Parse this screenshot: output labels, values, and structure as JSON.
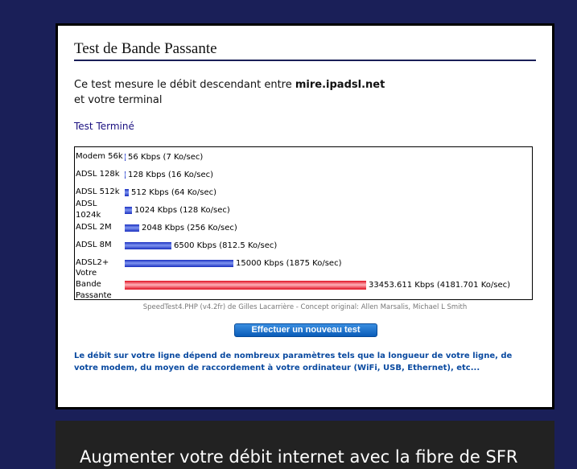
{
  "panel": {
    "title": "Test de Bande Passante",
    "intro_prefix": "Ce test mesure le débit descendant entre ",
    "intro_host": "mire.ipadsl.net",
    "intro_suffix": "et votre terminal",
    "status": "Test Terminé",
    "credit": "SpeedTest4.PHP (v4.2fr) de Gilles Lacarrière - Concept original: Allen Marsalis, Michael L Smith",
    "button_label": "Effectuer un nouveau test",
    "note": "Le débit sur votre ligne dépend de nombreux paramètres tels que la longueur de votre ligne, de votre modem, du moyen de raccordement à votre ordinateur (WiFi, USB, Ethernet), etc..."
  },
  "chart_data": {
    "type": "bar",
    "orientation": "horizontal",
    "unit": "Kbps",
    "categories": [
      "Modem 56k",
      "ADSL 128k",
      "ADSL 512k",
      "ADSL 1024k",
      "ADSL 2M",
      "ADSL 8M",
      "ADSL2+",
      "Votre Bande Passante"
    ],
    "values": [
      56,
      128,
      512,
      1024,
      2048,
      6500,
      15000,
      33453.611
    ],
    "labels": [
      "56 Kbps (7 Ko/sec)",
      "128 Kbps (16 Ko/sec)",
      "512 Kbps (64 Ko/sec)",
      "1024 Kbps (128 Ko/sec)",
      "2048 Kbps (256 Ko/sec)",
      "6500 Kbps (812.5 Ko/sec)",
      "15000 Kbps (1875 Ko/sec)",
      "33453.611 Kbps (4181.701 Ko/sec)"
    ],
    "colors": {
      "reference": "#1a2fc0",
      "yours": "#e01020"
    }
  },
  "promo": {
    "text": "Augmenter votre débit internet avec la fibre de SFR"
  },
  "colors": {
    "background": "#1a1f58",
    "promo_bg": "#222222"
  }
}
